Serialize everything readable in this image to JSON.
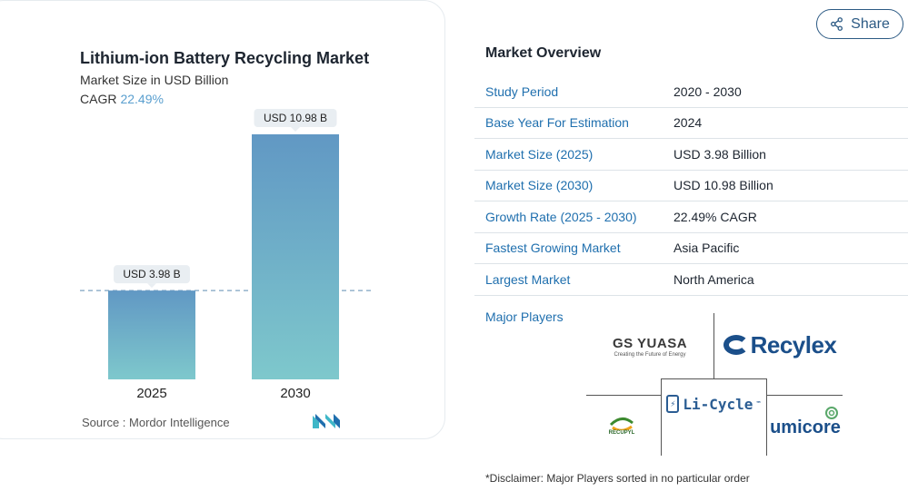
{
  "chart_data": {
    "type": "bar",
    "title": "Lithium-ion Battery Recycling Market",
    "subtitle": "Market Size in USD Billion",
    "cagr_label": "CAGR",
    "cagr_value": "22.49%",
    "categories": [
      "2025",
      "2030"
    ],
    "values": [
      3.98,
      10.98
    ],
    "data_labels": [
      "USD 3.98 B",
      "USD 10.98 B"
    ],
    "ylim": [
      0,
      10.98
    ],
    "bar_gradient": [
      "#6198c4",
      "#7ec8cc"
    ],
    "reference_line": true,
    "source": "Source :  Mordor Intelligence"
  },
  "share_label": "Share",
  "overview": {
    "title": "Market Overview",
    "rows": [
      {
        "label": "Study Period",
        "value": "2020 - 2030"
      },
      {
        "label": "Base Year For Estimation",
        "value": "2024"
      },
      {
        "label": "Market Size (2025)",
        "value": "USD 3.98 Billion"
      },
      {
        "label": "Market Size (2030)",
        "value": "USD 10.98 Billion"
      },
      {
        "label": "Growth Rate (2025 - 2030)",
        "value": "22.49% CAGR"
      },
      {
        "label": "Fastest Growing Market",
        "value": "Asia Pacific"
      },
      {
        "label": "Largest Market",
        "value": "North America"
      }
    ],
    "major_players_label": "Major Players",
    "players": {
      "gs_yuasa": {
        "name": "GS YUASA",
        "tagline": "Creating the Future of Energy"
      },
      "recylex": {
        "name": "Recylex"
      },
      "li_cycle": {
        "name": "Li-Cycle",
        "mark": "™"
      },
      "recupyl": {
        "name": "RECUPYL"
      },
      "umicore": {
        "name": "umicore"
      }
    }
  },
  "disclaimer": "*Disclaimer: Major Players sorted in no particular order",
  "colors": {
    "accent": "#1f6fae",
    "cagr": "#5a9fcf",
    "share_border": "#2c5a84"
  }
}
